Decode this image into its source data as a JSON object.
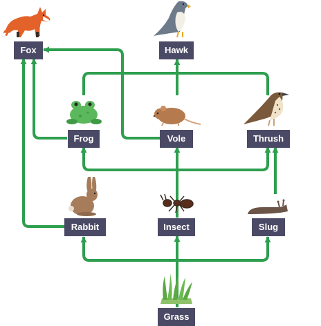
{
  "food_web": {
    "nodes": {
      "fox": "Fox",
      "hawk": "Hawk",
      "frog": "Frog",
      "vole": "Vole",
      "thrush": "Thrush",
      "rabbit": "Rabbit",
      "insect": "Insect",
      "slug": "Slug",
      "grass": "Grass"
    },
    "links": [
      [
        "grass",
        "rabbit"
      ],
      [
        "grass",
        "insect"
      ],
      [
        "grass",
        "slug"
      ],
      [
        "rabbit",
        "fox"
      ],
      [
        "insect",
        "vole"
      ],
      [
        "insect",
        "frog"
      ],
      [
        "insect",
        "thrush"
      ],
      [
        "slug",
        "thrush"
      ],
      [
        "frog",
        "fox"
      ],
      [
        "vole",
        "fox"
      ],
      [
        "vole",
        "hawk"
      ],
      [
        "frog",
        "hawk"
      ],
      [
        "thrush",
        "hawk"
      ]
    ],
    "colors": {
      "arrow": "#2e9e4f",
      "label_bg": "#4b4a66",
      "label_text": "#ffffff"
    },
    "icons": {
      "fox": "fox-icon",
      "hawk": "hawk-icon",
      "frog": "frog-icon",
      "vole": "vole-icon",
      "thrush": "thrush-icon",
      "rabbit": "rabbit-icon",
      "insect": "ant-icon",
      "slug": "slug-icon",
      "grass": "grass-icon"
    }
  }
}
